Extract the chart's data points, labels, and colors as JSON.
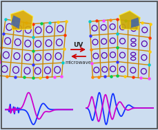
{
  "background_color": "#ccddf0",
  "border_color": "#444444",
  "arrow_text_uv": "UV",
  "arrow_text_mw": "microwave",
  "arrow_color": "#cc0000",
  "scaffold_color": "#cc8800",
  "ring_color": "#5500aa",
  "dot_colors": [
    "#00cccc",
    "#ff3300",
    "#ff8800",
    "#00cc44",
    "#ffcc00",
    "#ff44ff",
    "#3333ff"
  ],
  "left_blue_color": "#1133ff",
  "left_mag_color": "#cc00cc",
  "right_blue_color": "#1133ff",
  "right_mag_color": "#cc00cc"
}
